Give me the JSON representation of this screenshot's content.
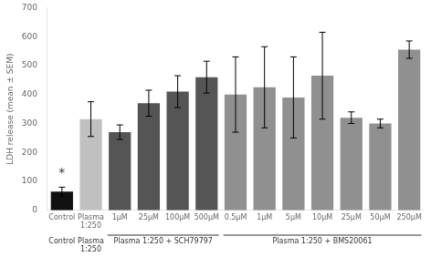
{
  "chart_data": {
    "type": "bar",
    "categories": [
      "Control",
      "Plasma 1:250",
      "1μM",
      "25μM",
      "100μM",
      "500μM",
      "0.5μM",
      "1μM",
      "5μM",
      "10μM",
      "25μM",
      "50μM",
      "250μM"
    ],
    "values": [
      65,
      315,
      270,
      370,
      410,
      460,
      400,
      425,
      390,
      465,
      320,
      300,
      555
    ],
    "errors": [
      15,
      60,
      25,
      45,
      55,
      55,
      130,
      140,
      140,
      150,
      20,
      15,
      30
    ],
    "colors": [
      "#111111",
      "#c0c0c0",
      "#555555",
      "#555555",
      "#555555",
      "#555555",
      "#909090",
      "#909090",
      "#909090",
      "#909090",
      "#909090",
      "#909090",
      "#909090"
    ],
    "ylabel": "LDH release (mean ± SEM)",
    "ylim": [
      0,
      700
    ],
    "yticks": [
      0,
      100,
      200,
      300,
      400,
      500,
      600,
      700
    ],
    "annotations": [
      {
        "text": "*",
        "x": "Control",
        "y": 105
      }
    ],
    "groups": [
      {
        "label": "Control",
        "count": 1
      },
      {
        "label": "Plasma 1:250",
        "count": 1
      },
      {
        "label": "Plasma 1:250 + SCH79797",
        "count": 4
      },
      {
        "label": "Plasma 1:250 + BMS20061",
        "count": 7
      }
    ],
    "grid": false,
    "legend": false
  }
}
